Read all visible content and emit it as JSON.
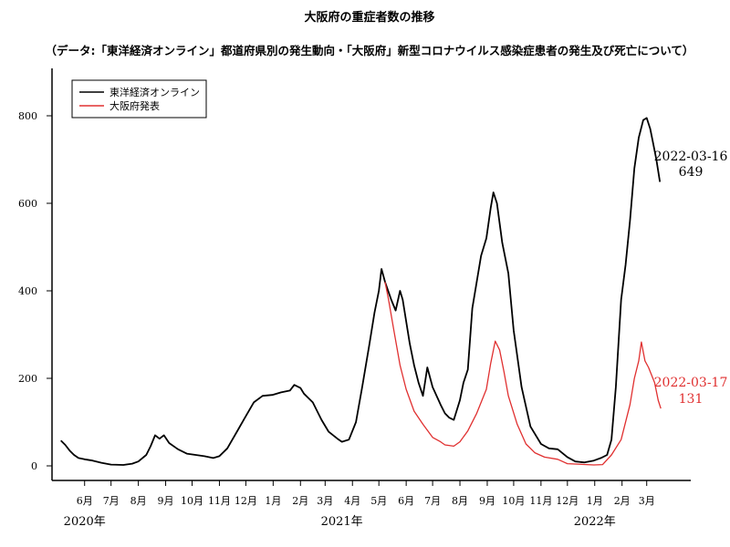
{
  "chart_data": {
    "type": "line",
    "title": "大阪府の重症者数の推移",
    "subtitle": "（データ:「東洋経済オンライン」都道府県別の発生動向・「大阪府」新型コロナウイルス感染症患者の発生及び死亡について）",
    "ylim": [
      0,
      850
    ],
    "y_ticks": [
      0,
      200,
      400,
      600,
      800
    ],
    "x_range": [
      "2020-04-25",
      "2022-04-20"
    ],
    "x_ticks": [
      {
        "date": "2020-06-01",
        "label": "6月"
      },
      {
        "date": "2020-07-01",
        "label": "7月"
      },
      {
        "date": "2020-08-01",
        "label": "8月"
      },
      {
        "date": "2020-09-01",
        "label": "9月"
      },
      {
        "date": "2020-10-01",
        "label": "10月"
      },
      {
        "date": "2020-11-01",
        "label": "11月"
      },
      {
        "date": "2020-12-01",
        "label": "12月"
      },
      {
        "date": "2021-01-01",
        "label": "1月"
      },
      {
        "date": "2021-02-01",
        "label": "2月"
      },
      {
        "date": "2021-03-01",
        "label": "3月"
      },
      {
        "date": "2021-04-01",
        "label": "4月"
      },
      {
        "date": "2021-05-01",
        "label": "5月"
      },
      {
        "date": "2021-06-01",
        "label": "6月"
      },
      {
        "date": "2021-07-01",
        "label": "7月"
      },
      {
        "date": "2021-08-01",
        "label": "8月"
      },
      {
        "date": "2021-09-01",
        "label": "9月"
      },
      {
        "date": "2021-10-01",
        "label": "10月"
      },
      {
        "date": "2021-11-01",
        "label": "11月"
      },
      {
        "date": "2021-12-01",
        "label": "12月"
      },
      {
        "date": "2022-01-01",
        "label": "1月"
      },
      {
        "date": "2022-02-01",
        "label": "2月"
      },
      {
        "date": "2022-03-01",
        "label": "3月"
      }
    ],
    "year_labels": [
      {
        "date": "2020-06-01",
        "label": "2020年"
      },
      {
        "date": "2021-03-20",
        "label": "2021年"
      },
      {
        "date": "2022-01-01",
        "label": "2022年"
      }
    ],
    "legend_position": "top-left",
    "series": [
      {
        "name": "東洋経済オンライン",
        "color": "#000000",
        "points": [
          [
            "2020-05-05",
            58
          ],
          [
            "2020-05-10",
            48
          ],
          [
            "2020-05-15",
            35
          ],
          [
            "2020-05-20",
            25
          ],
          [
            "2020-05-25",
            18
          ],
          [
            "2020-06-01",
            15
          ],
          [
            "2020-06-10",
            12
          ],
          [
            "2020-06-20",
            7
          ],
          [
            "2020-07-01",
            3
          ],
          [
            "2020-07-15",
            2
          ],
          [
            "2020-07-25",
            5
          ],
          [
            "2020-08-01",
            10
          ],
          [
            "2020-08-10",
            25
          ],
          [
            "2020-08-15",
            45
          ],
          [
            "2020-08-20",
            70
          ],
          [
            "2020-08-25",
            62
          ],
          [
            "2020-08-30",
            70
          ],
          [
            "2020-09-05",
            52
          ],
          [
            "2020-09-15",
            38
          ],
          [
            "2020-09-25",
            28
          ],
          [
            "2020-10-05",
            25
          ],
          [
            "2020-10-15",
            22
          ],
          [
            "2020-10-25",
            18
          ],
          [
            "2020-11-01",
            22
          ],
          [
            "2020-11-10",
            40
          ],
          [
            "2020-11-20",
            75
          ],
          [
            "2020-11-30",
            110
          ],
          [
            "2020-12-10",
            145
          ],
          [
            "2020-12-20",
            160
          ],
          [
            "2020-12-31",
            162
          ],
          [
            "2021-01-10",
            168
          ],
          [
            "2021-01-20",
            172
          ],
          [
            "2021-01-25",
            185
          ],
          [
            "2021-02-01",
            178
          ],
          [
            "2021-02-05",
            165
          ],
          [
            "2021-02-15",
            145
          ],
          [
            "2021-02-25",
            105
          ],
          [
            "2021-03-05",
            78
          ],
          [
            "2021-03-15",
            62
          ],
          [
            "2021-03-20",
            55
          ],
          [
            "2021-03-28",
            60
          ],
          [
            "2021-04-05",
            100
          ],
          [
            "2021-04-12",
            180
          ],
          [
            "2021-04-20",
            275
          ],
          [
            "2021-04-26",
            350
          ],
          [
            "2021-05-01",
            400
          ],
          [
            "2021-05-04",
            450
          ],
          [
            "2021-05-08",
            420
          ],
          [
            "2021-05-15",
            380
          ],
          [
            "2021-05-20",
            355
          ],
          [
            "2021-05-25",
            400
          ],
          [
            "2021-05-28",
            380
          ],
          [
            "2021-06-05",
            280
          ],
          [
            "2021-06-10",
            230
          ],
          [
            "2021-06-15",
            190
          ],
          [
            "2021-06-20",
            160
          ],
          [
            "2021-06-25",
            225
          ],
          [
            "2021-07-01",
            180
          ],
          [
            "2021-07-10",
            140
          ],
          [
            "2021-07-15",
            120
          ],
          [
            "2021-07-20",
            110
          ],
          [
            "2021-07-25",
            105
          ],
          [
            "2021-08-01",
            150
          ],
          [
            "2021-08-05",
            190
          ],
          [
            "2021-08-10",
            220
          ],
          [
            "2021-08-15",
            360
          ],
          [
            "2021-08-20",
            420
          ],
          [
            "2021-08-25",
            480
          ],
          [
            "2021-08-31",
            520
          ],
          [
            "2021-09-05",
            590
          ],
          [
            "2021-09-08",
            625
          ],
          [
            "2021-09-12",
            600
          ],
          [
            "2021-09-18",
            510
          ],
          [
            "2021-09-25",
            440
          ],
          [
            "2021-10-01",
            310
          ],
          [
            "2021-10-10",
            180
          ],
          [
            "2021-10-20",
            90
          ],
          [
            "2021-11-01",
            50
          ],
          [
            "2021-11-10",
            40
          ],
          [
            "2021-11-20",
            38
          ],
          [
            "2021-12-01",
            20
          ],
          [
            "2021-12-10",
            10
          ],
          [
            "2021-12-20",
            8
          ],
          [
            "2021-12-31",
            12
          ],
          [
            "2022-01-08",
            18
          ],
          [
            "2022-01-15",
            25
          ],
          [
            "2022-01-20",
            60
          ],
          [
            "2022-01-25",
            180
          ],
          [
            "2022-01-31",
            380
          ],
          [
            "2022-02-05",
            460
          ],
          [
            "2022-02-10",
            560
          ],
          [
            "2022-02-15",
            680
          ],
          [
            "2022-02-20",
            750
          ],
          [
            "2022-02-25",
            790
          ],
          [
            "2022-03-01",
            795
          ],
          [
            "2022-03-05",
            770
          ],
          [
            "2022-03-08",
            740
          ],
          [
            "2022-03-12",
            700
          ],
          [
            "2022-03-16",
            649
          ]
        ]
      },
      {
        "name": "大阪府発表",
        "color": "#e03030",
        "points": [
          [
            "2021-05-08",
            420
          ],
          [
            "2021-05-12",
            380
          ],
          [
            "2021-05-18",
            310
          ],
          [
            "2021-05-25",
            230
          ],
          [
            "2021-06-01",
            175
          ],
          [
            "2021-06-10",
            125
          ],
          [
            "2021-06-20",
            95
          ],
          [
            "2021-07-01",
            65
          ],
          [
            "2021-07-10",
            55
          ],
          [
            "2021-07-15",
            48
          ],
          [
            "2021-07-25",
            45
          ],
          [
            "2021-08-01",
            55
          ],
          [
            "2021-08-10",
            80
          ],
          [
            "2021-08-20",
            120
          ],
          [
            "2021-08-31",
            175
          ],
          [
            "2021-09-05",
            235
          ],
          [
            "2021-09-10",
            285
          ],
          [
            "2021-09-15",
            265
          ],
          [
            "2021-09-20",
            215
          ],
          [
            "2021-09-25",
            160
          ],
          [
            "2021-10-05",
            95
          ],
          [
            "2021-10-15",
            50
          ],
          [
            "2021-10-25",
            30
          ],
          [
            "2021-11-05",
            20
          ],
          [
            "2021-11-20",
            15
          ],
          [
            "2021-12-01",
            5
          ],
          [
            "2021-12-31",
            2
          ],
          [
            "2022-01-10",
            3
          ],
          [
            "2022-01-20",
            25
          ],
          [
            "2022-01-31",
            60
          ],
          [
            "2022-02-10",
            140
          ],
          [
            "2022-02-15",
            200
          ],
          [
            "2022-02-20",
            240
          ],
          [
            "2022-02-23",
            283
          ],
          [
            "2022-02-27",
            240
          ],
          [
            "2022-03-03",
            225
          ],
          [
            "2022-03-10",
            190
          ],
          [
            "2022-03-14",
            150
          ],
          [
            "2022-03-17",
            131
          ]
        ]
      }
    ],
    "annotations": [
      {
        "date_label": "2022-03-16",
        "value_label": "649",
        "color": "#000000"
      },
      {
        "date_label": "2022-03-17",
        "value_label": "131",
        "color": "#e03030"
      }
    ]
  }
}
